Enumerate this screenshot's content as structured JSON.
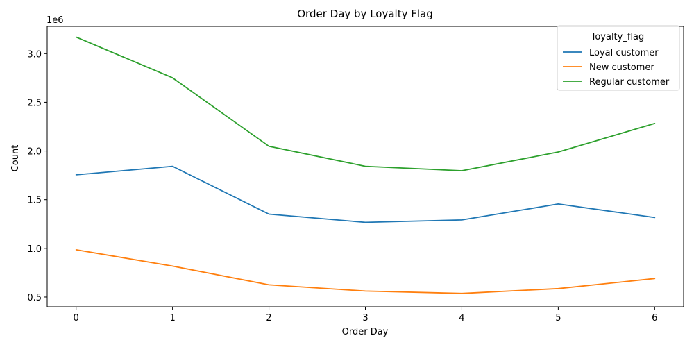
{
  "chart_data": {
    "type": "line",
    "title": "Order Day by Loyalty Flag",
    "xlabel": "Order Day",
    "ylabel": "Count",
    "y_scale_note": "1e6",
    "x": [
      0,
      1,
      2,
      3,
      4,
      5,
      6
    ],
    "xlim": [
      -0.3,
      6.3
    ],
    "ylim": [
      400000,
      3280000
    ],
    "x_ticks": [
      "0",
      "1",
      "2",
      "3",
      "4",
      "5",
      "6"
    ],
    "y_ticks": [
      {
        "value": 500000,
        "label": "0.5"
      },
      {
        "value": 1000000,
        "label": "1.0"
      },
      {
        "value": 1500000,
        "label": "1.5"
      },
      {
        "value": 2000000,
        "label": "2.0"
      },
      {
        "value": 2500000,
        "label": "2.5"
      },
      {
        "value": 3000000,
        "label": "3.0"
      }
    ],
    "grid": false,
    "legend": {
      "title": "loyalty_flag",
      "position": "top-right"
    },
    "series": [
      {
        "name": "Loyal customer",
        "color": "#1f77b4",
        "values": [
          1755000,
          1843000,
          1352000,
          1267000,
          1292000,
          1456000,
          1317000
        ]
      },
      {
        "name": "New customer",
        "color": "#ff7f0e",
        "values": [
          985000,
          818000,
          625000,
          561000,
          537000,
          587000,
          690000
        ]
      },
      {
        "name": "Regular customer",
        "color": "#2ca02c",
        "values": [
          3170000,
          2752000,
          2048000,
          1843000,
          1797000,
          1990000,
          2283000
        ]
      }
    ]
  }
}
